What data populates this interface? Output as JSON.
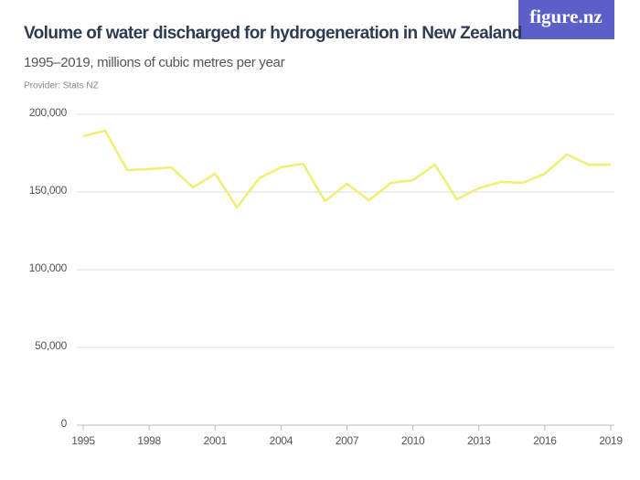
{
  "chart_data": {
    "type": "line",
    "title": "Volume of water discharged for hydrogeneration in New Zealand",
    "subtitle": "1995–2019, millions of cubic metres per year",
    "provider": "Provider: Stats NZ",
    "logo": "figure.nz",
    "x": [
      1995,
      1996,
      1997,
      1998,
      1999,
      2000,
      2001,
      2002,
      2003,
      2004,
      2005,
      2006,
      2007,
      2008,
      2009,
      2010,
      2011,
      2012,
      2013,
      2014,
      2015,
      2016,
      2017,
      2018,
      2019
    ],
    "series": [
      {
        "name": "Volume of water discharged",
        "color": "#f3ed73",
        "values": [
          186000,
          189400,
          164100,
          164700,
          165900,
          152900,
          161800,
          140000,
          158800,
          165900,
          168200,
          144100,
          155300,
          144700,
          155900,
          157600,
          167600,
          145300,
          152400,
          156500,
          155900,
          161800,
          174100,
          167600,
          167600
        ]
      }
    ],
    "xlim": [
      1995,
      2019
    ],
    "xticks": [
      1995,
      1998,
      2001,
      2004,
      2007,
      2010,
      2013,
      2016,
      2019
    ],
    "ylim": [
      0,
      200000
    ],
    "yticks": [
      0,
      {
        "value": 50000,
        "label": "50,000"
      },
      {
        "value": 100000,
        "label": "100,000"
      },
      {
        "value": 150000,
        "label": "150,000"
      },
      {
        "value": 200000,
        "label": "200,000"
      }
    ],
    "grid": true
  }
}
